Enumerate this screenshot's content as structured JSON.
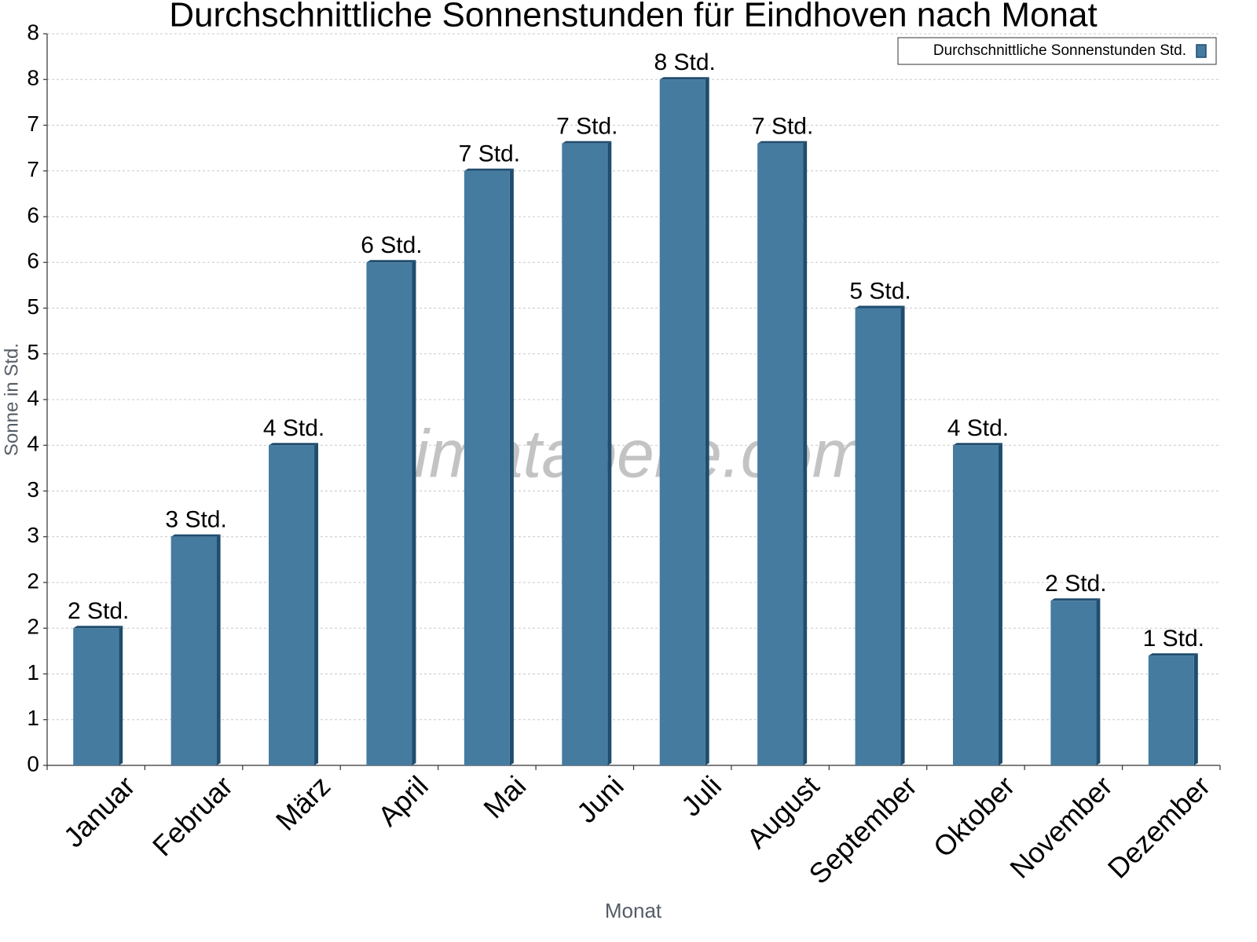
{
  "chart_data": {
    "type": "bar",
    "title": "Durchschnittliche Sonnenstunden für Eindhoven nach Monat",
    "watermark": "klimatabelle.com",
    "x_label": "Monat",
    "y_label": "Sonne in Std.",
    "categories": [
      "Januar",
      "Februar",
      "März",
      "April",
      "Mai",
      "Juni",
      "Juli",
      "August",
      "September",
      "Oktober",
      "November",
      "Dezember"
    ],
    "series": [
      {
        "name": "Durchschnittliche Sonnenstunden Std.",
        "color": "#467ba0",
        "values": [
          1.5,
          2.5,
          3.5,
          5.5,
          6.5,
          6.8,
          7.5,
          6.8,
          5.0,
          3.5,
          1.8,
          1.2
        ],
        "value_labels": [
          "2 Std.",
          "3 Std.",
          "4 Std.",
          "6 Std.",
          "7 Std.",
          "7 Std.",
          "8 Std.",
          "7 Std.",
          "5 Std.",
          "4 Std.",
          "2 Std.",
          "1 Std."
        ]
      }
    ],
    "ylim": [
      0,
      8
    ],
    "yticks": [
      0,
      {
        "value": 0.5,
        "label": "1"
      },
      1,
      {
        "value": 1.5,
        "label": "2"
      },
      2,
      {
        "value": 2.5,
        "label": "3"
      },
      3,
      {
        "value": 3.5,
        "label": "4"
      },
      4,
      {
        "value": 4.5,
        "label": "5"
      },
      5,
      {
        "value": 5.5,
        "label": "6"
      },
      6,
      {
        "value": 6.5,
        "label": "7"
      },
      7,
      {
        "value": 7.5,
        "label": "8"
      },
      8
    ],
    "grid": true,
    "legend": "top-right"
  }
}
